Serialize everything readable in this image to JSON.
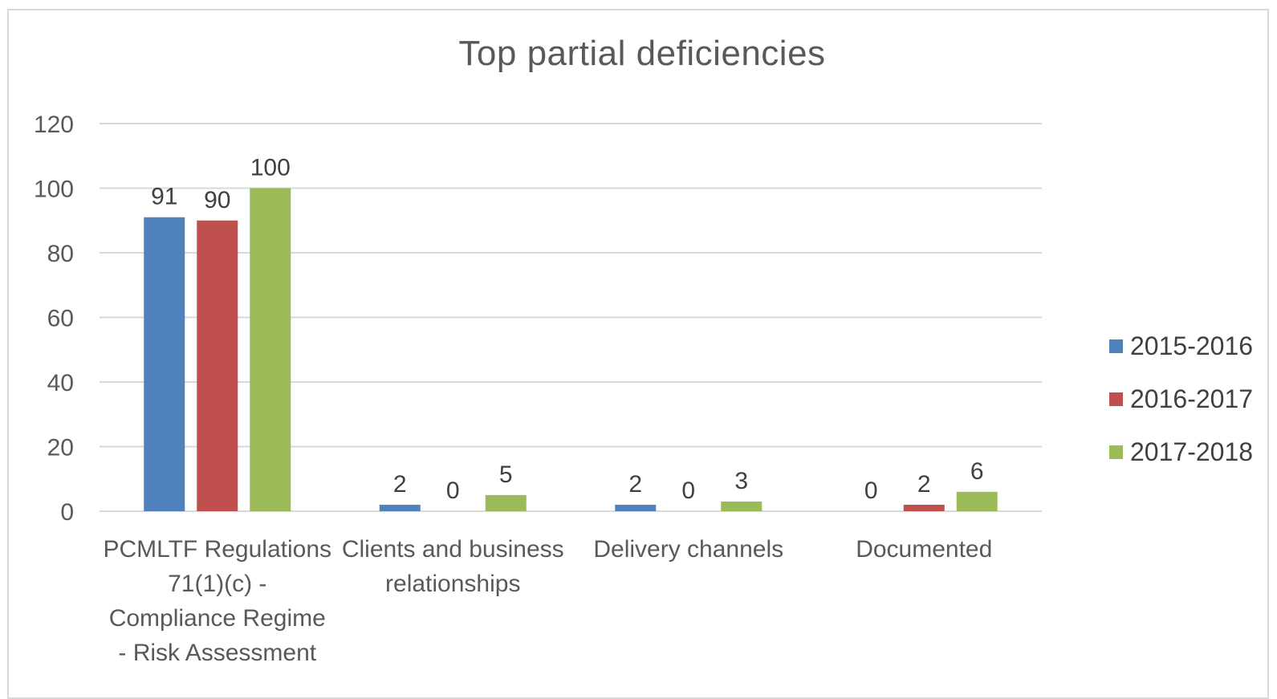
{
  "chart_data": {
    "type": "bar",
    "title": "Top partial deficiencies",
    "categories": [
      [
        "PCMLTF Regulations",
        "71(1)(c) -",
        "Compliance Regime",
        "- Risk Assessment"
      ],
      [
        "Clients and business",
        "relationships"
      ],
      [
        "Delivery channels"
      ],
      [
        "Documented"
      ]
    ],
    "series": [
      {
        "name": "2015-2016",
        "color": "#4f81bd",
        "values": [
          91,
          2,
          2,
          0
        ]
      },
      {
        "name": "2016-2017",
        "color": "#c0504d",
        "values": [
          90,
          0,
          0,
          2
        ]
      },
      {
        "name": "2017-2018",
        "color": "#9bbb59",
        "values": [
          100,
          5,
          3,
          6
        ]
      }
    ],
    "ylim": [
      0,
      120
    ],
    "yticks": [
      0,
      20,
      40,
      60,
      80,
      100,
      120
    ],
    "grid": true,
    "legend": "right",
    "xlabel": "",
    "ylabel": ""
  }
}
